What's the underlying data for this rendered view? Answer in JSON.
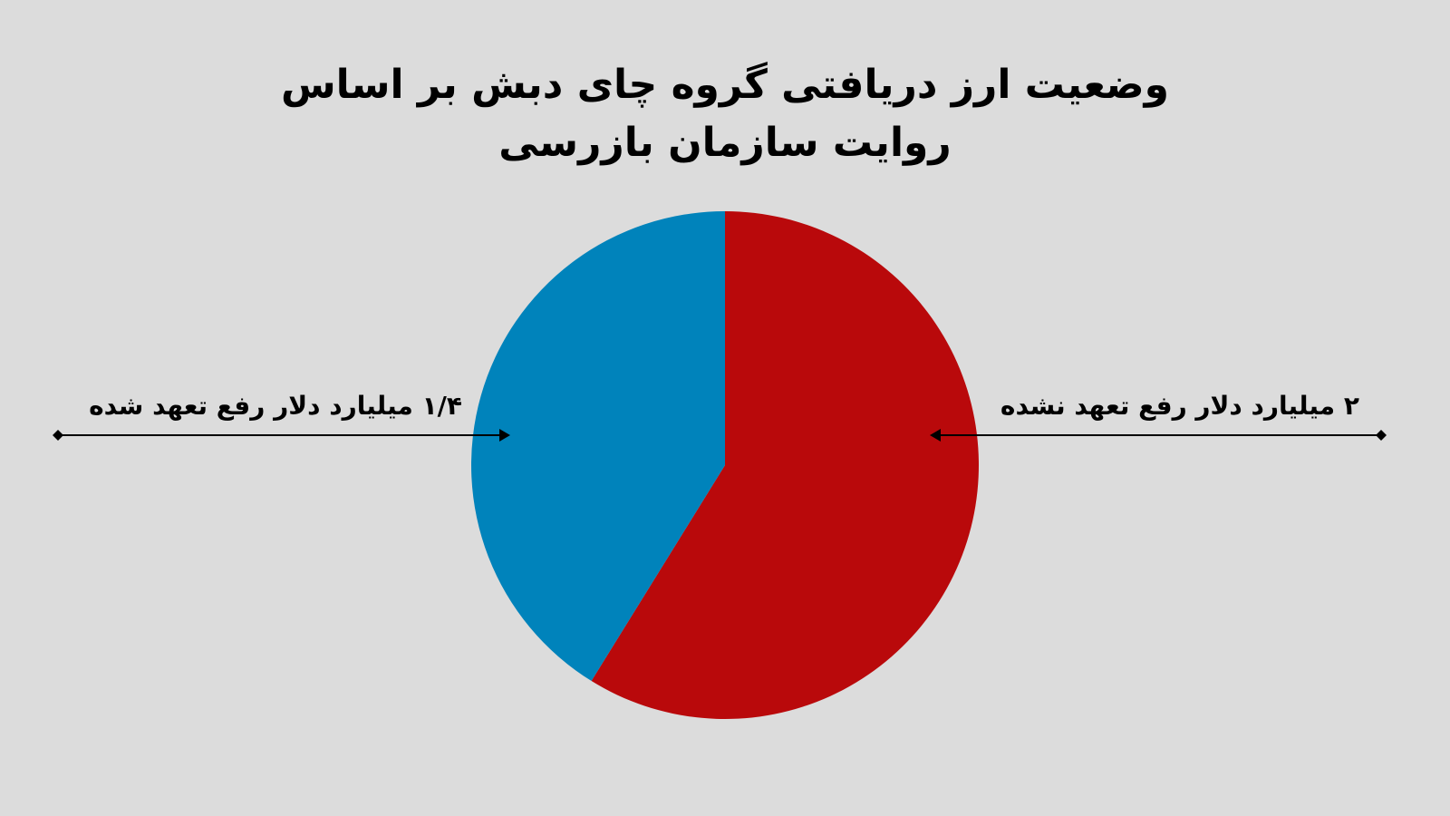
{
  "chart_data": {
    "type": "pie",
    "title": "وضعیت ارز دریافتی گروه چای دبش بر اساس روایت سازمان بازرسی",
    "values": [
      2,
      1.4
    ],
    "value_labels": [
      "۲ میلیارد دلار رفع تعهد نشده",
      "۱/۴ میلیارد دلار رفع تعهد شده"
    ],
    "colors": [
      "#b9090b",
      "#0083bb"
    ]
  }
}
